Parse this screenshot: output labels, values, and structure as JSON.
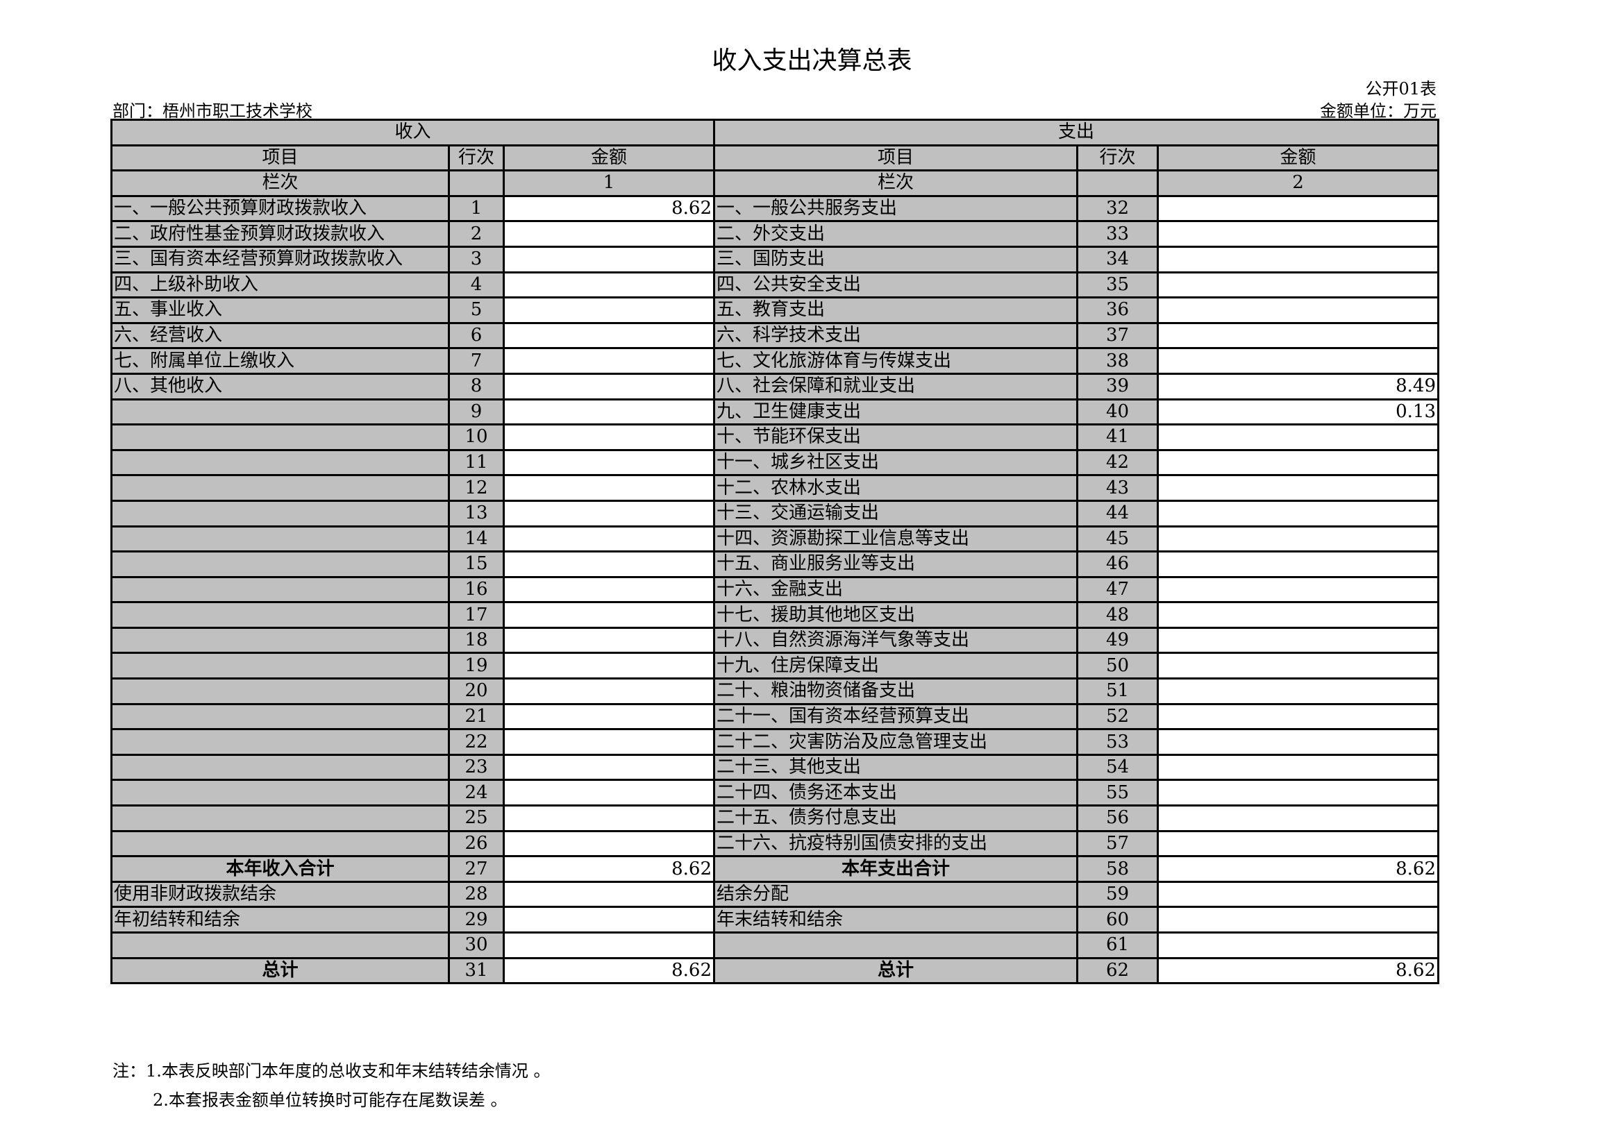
{
  "title": "收入支出决算总表",
  "form_no": "公开01表",
  "department": "部门：梧州市职工技术学校",
  "unit": "金额单位：万元",
  "headers": {
    "income": "收入",
    "expense": "支出",
    "item": "项目",
    "line": "行次",
    "amount": "金额",
    "column_label": "栏次",
    "income_col": "1",
    "expense_col": "2"
  },
  "rows": [
    {
      "in_label": "一、一般公共预算财政拨款收入",
      "in_line": "1",
      "in_amt": "8.62",
      "ex_label": "一、一般公共服务支出",
      "ex_line": "32",
      "ex_amt": ""
    },
    {
      "in_label": "二、政府性基金预算财政拨款收入",
      "in_line": "2",
      "in_amt": "",
      "ex_label": "二、外交支出",
      "ex_line": "33",
      "ex_amt": ""
    },
    {
      "in_label": "三、国有资本经营预算财政拨款收入",
      "in_line": "3",
      "in_amt": "",
      "ex_label": "三、国防支出",
      "ex_line": "34",
      "ex_amt": ""
    },
    {
      "in_label": "四、上级补助收入",
      "in_line": "4",
      "in_amt": "",
      "ex_label": "四、公共安全支出",
      "ex_line": "35",
      "ex_amt": ""
    },
    {
      "in_label": "五、事业收入",
      "in_line": "5",
      "in_amt": "",
      "ex_label": "五、教育支出",
      "ex_line": "36",
      "ex_amt": ""
    },
    {
      "in_label": "六、经营收入",
      "in_line": "6",
      "in_amt": "",
      "ex_label": "六、科学技术支出",
      "ex_line": "37",
      "ex_amt": ""
    },
    {
      "in_label": "七、附属单位上缴收入",
      "in_line": "7",
      "in_amt": "",
      "ex_label": "七、文化旅游体育与传媒支出",
      "ex_line": "38",
      "ex_amt": ""
    },
    {
      "in_label": "八、其他收入",
      "in_line": "8",
      "in_amt": "",
      "ex_label": "八、社会保障和就业支出",
      "ex_line": "39",
      "ex_amt": "8.49"
    },
    {
      "in_label": "",
      "in_line": "9",
      "in_amt": "",
      "ex_label": "九、卫生健康支出",
      "ex_line": "40",
      "ex_amt": "0.13"
    },
    {
      "in_label": "",
      "in_line": "10",
      "in_amt": "",
      "ex_label": "十、节能环保支出",
      "ex_line": "41",
      "ex_amt": ""
    },
    {
      "in_label": "",
      "in_line": "11",
      "in_amt": "",
      "ex_label": "十一、城乡社区支出",
      "ex_line": "42",
      "ex_amt": ""
    },
    {
      "in_label": "",
      "in_line": "12",
      "in_amt": "",
      "ex_label": "十二、农林水支出",
      "ex_line": "43",
      "ex_amt": ""
    },
    {
      "in_label": "",
      "in_line": "13",
      "in_amt": "",
      "ex_label": "十三、交通运输支出",
      "ex_line": "44",
      "ex_amt": ""
    },
    {
      "in_label": "",
      "in_line": "14",
      "in_amt": "",
      "ex_label": "十四、资源勘探工业信息等支出",
      "ex_line": "45",
      "ex_amt": ""
    },
    {
      "in_label": "",
      "in_line": "15",
      "in_amt": "",
      "ex_label": "十五、商业服务业等支出",
      "ex_line": "46",
      "ex_amt": ""
    },
    {
      "in_label": "",
      "in_line": "16",
      "in_amt": "",
      "ex_label": "十六、金融支出",
      "ex_line": "47",
      "ex_amt": ""
    },
    {
      "in_label": "",
      "in_line": "17",
      "in_amt": "",
      "ex_label": "十七、援助其他地区支出",
      "ex_line": "48",
      "ex_amt": ""
    },
    {
      "in_label": "",
      "in_line": "18",
      "in_amt": "",
      "ex_label": "十八、自然资源海洋气象等支出",
      "ex_line": "49",
      "ex_amt": ""
    },
    {
      "in_label": "",
      "in_line": "19",
      "in_amt": "",
      "ex_label": "十九、住房保障支出",
      "ex_line": "50",
      "ex_amt": ""
    },
    {
      "in_label": "",
      "in_line": "20",
      "in_amt": "",
      "ex_label": "二十、粮油物资储备支出",
      "ex_line": "51",
      "ex_amt": ""
    },
    {
      "in_label": "",
      "in_line": "21",
      "in_amt": "",
      "ex_label": "二十一、国有资本经营预算支出",
      "ex_line": "52",
      "ex_amt": ""
    },
    {
      "in_label": "",
      "in_line": "22",
      "in_amt": "",
      "ex_label": "二十二、灾害防治及应急管理支出",
      "ex_line": "53",
      "ex_amt": ""
    },
    {
      "in_label": "",
      "in_line": "23",
      "in_amt": "",
      "ex_label": "二十三、其他支出",
      "ex_line": "54",
      "ex_amt": ""
    },
    {
      "in_label": "",
      "in_line": "24",
      "in_amt": "",
      "ex_label": "二十四、债务还本支出",
      "ex_line": "55",
      "ex_amt": ""
    },
    {
      "in_label": "",
      "in_line": "25",
      "in_amt": "",
      "ex_label": "二十五、债务付息支出",
      "ex_line": "56",
      "ex_amt": ""
    },
    {
      "in_label": "",
      "in_line": "26",
      "in_amt": "",
      "ex_label": "二十六、抗疫特别国债安排的支出",
      "ex_line": "57",
      "ex_amt": ""
    },
    {
      "in_label": "本年收入合计",
      "in_line": "27",
      "in_amt": "8.62",
      "ex_label": "本年支出合计",
      "ex_line": "58",
      "ex_amt": "8.62",
      "bold": true
    },
    {
      "in_label": "使用非财政拨款结余",
      "in_line": "28",
      "in_amt": "",
      "ex_label": "结余分配",
      "ex_line": "59",
      "ex_amt": ""
    },
    {
      "in_label": "年初结转和结余",
      "in_line": "29",
      "in_amt": "",
      "ex_label": "年末结转和结余",
      "ex_line": "60",
      "ex_amt": ""
    },
    {
      "in_label": "",
      "in_line": "30",
      "in_amt": "",
      "ex_label": "",
      "ex_line": "61",
      "ex_amt": ""
    },
    {
      "in_label": "总计",
      "in_line": "31",
      "in_amt": "8.62",
      "ex_label": "总计",
      "ex_line": "62",
      "ex_amt": "8.62",
      "bold": true
    }
  ],
  "notes": [
    "注：1.本表反映部门本年度的总收支和年末结转结余情况 。",
    "2.本套报表金额单位转换时可能存在尾数误差 。"
  ]
}
